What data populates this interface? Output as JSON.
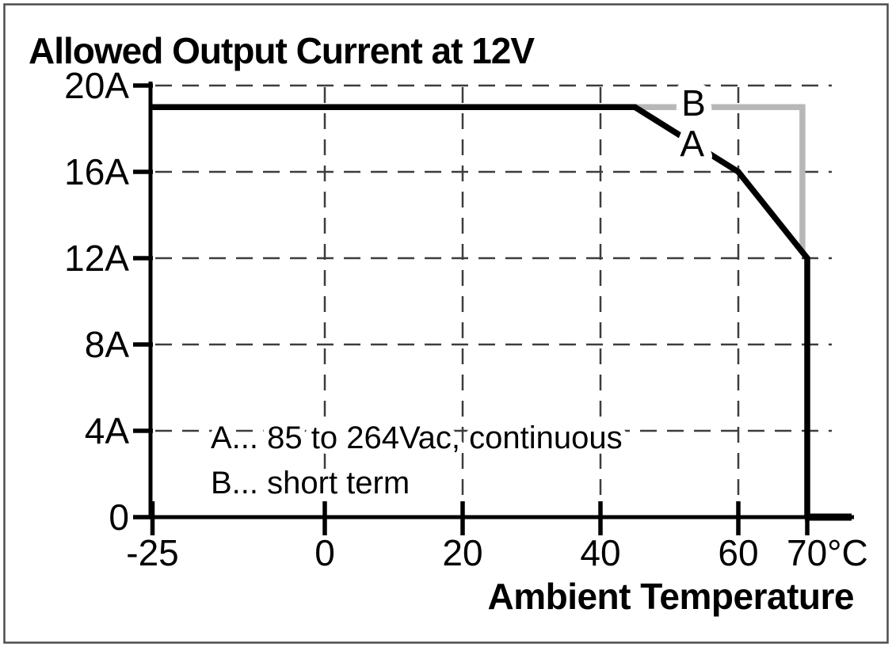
{
  "colors": {
    "axis": "#000000",
    "grid": "#3d3d3d",
    "text": "#000000",
    "border": "#4d4d4d",
    "background": "#ffffff",
    "series_a": "#000000",
    "series_b": "#b7b7b7"
  },
  "legend": {
    "line1": "A... 85 to 264Vac, continuous",
    "line2": "B... short term"
  },
  "chart_data": {
    "type": "line",
    "title": "Allowed Output Current at 12V",
    "xlabel": "Ambient Temperature",
    "x_unit": "°C",
    "ylabel": "Allowed Output Current",
    "y_unit": "A",
    "xlim": [
      -25,
      75
    ],
    "ylim": [
      0,
      20.5
    ],
    "grid": "dashed",
    "legend_position": "inside-lower-left",
    "x_ticks": [
      {
        "value": -25,
        "label": "-25"
      },
      {
        "value": 0,
        "label": "0"
      },
      {
        "value": 20,
        "label": "20"
      },
      {
        "value": 40,
        "label": "40"
      },
      {
        "value": 60,
        "label": "60"
      },
      {
        "value": 70,
        "label": "70°C"
      }
    ],
    "y_ticks": [
      {
        "value": 0,
        "label": "0"
      },
      {
        "value": 4,
        "label": "4A"
      },
      {
        "value": 8,
        "label": "8A"
      },
      {
        "value": 12,
        "label": "12A"
      },
      {
        "value": 16,
        "label": "16A"
      },
      {
        "value": 20,
        "label": "20A"
      }
    ],
    "series": [
      {
        "name": "A",
        "label": "A... 85 to 264Vac, continuous",
        "color": "#000000",
        "points": [
          [
            -25,
            19
          ],
          [
            45,
            19
          ],
          [
            60,
            16
          ],
          [
            70,
            12
          ],
          [
            70,
            0
          ]
        ]
      },
      {
        "name": "B",
        "label": "B... short term",
        "color": "#b7b7b7",
        "points": [
          [
            44,
            19
          ],
          [
            69.3,
            19
          ],
          [
            69.3,
            12.3
          ]
        ]
      }
    ],
    "curve_labels": [
      {
        "text": "B",
        "x": 53.5,
        "y": 19.2
      },
      {
        "text": "A",
        "x": 53.3,
        "y": 17.3
      }
    ]
  }
}
